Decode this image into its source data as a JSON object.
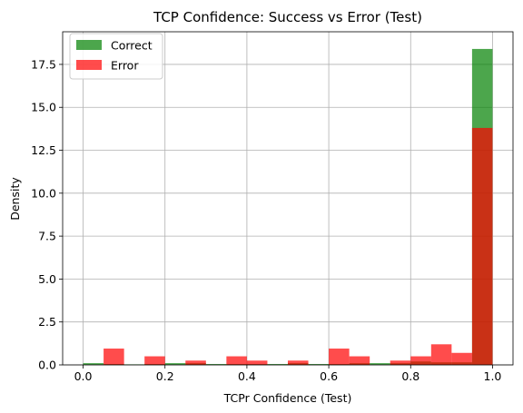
{
  "chart_data": {
    "type": "bar",
    "title": "TCP Confidence: Success vs Error (Test)",
    "xlabel": "TCPr Confidence (Test)",
    "ylabel": "Density",
    "xlim": [
      -0.05,
      1.05
    ],
    "ylim": [
      0,
      19.4
    ],
    "xticks": [
      "0.0",
      "0.2",
      "0.4",
      "0.6",
      "0.8",
      "1.0"
    ],
    "xtick_values": [
      0.0,
      0.2,
      0.4,
      0.6,
      0.8,
      1.0
    ],
    "yticks": [
      "0.0",
      "2.5",
      "5.0",
      "7.5",
      "10.0",
      "12.5",
      "15.0",
      "17.5"
    ],
    "ytick_values": [
      0.0,
      2.5,
      5.0,
      7.5,
      10.0,
      12.5,
      15.0,
      17.5
    ],
    "grid": true,
    "legend_position": "top-left",
    "bins": {
      "start": 0.0,
      "end": 1.0,
      "count": 20
    },
    "series": [
      {
        "name": "Correct",
        "color": "#008000",
        "values": [
          0.1,
          0.05,
          0.03,
          0.05,
          0.1,
          0.1,
          0.05,
          0.05,
          0.05,
          0.05,
          0.1,
          0.05,
          0.05,
          0.1,
          0.1,
          0.1,
          0.2,
          0.15,
          0.15,
          18.4
        ]
      },
      {
        "name": "Error",
        "color": "#ff0000",
        "values": [
          0.0,
          0.95,
          0.0,
          0.5,
          0.0,
          0.25,
          0.0,
          0.5,
          0.25,
          0.0,
          0.25,
          0.0,
          0.95,
          0.5,
          0.0,
          0.25,
          0.5,
          1.2,
          0.7,
          13.8
        ]
      }
    ]
  }
}
